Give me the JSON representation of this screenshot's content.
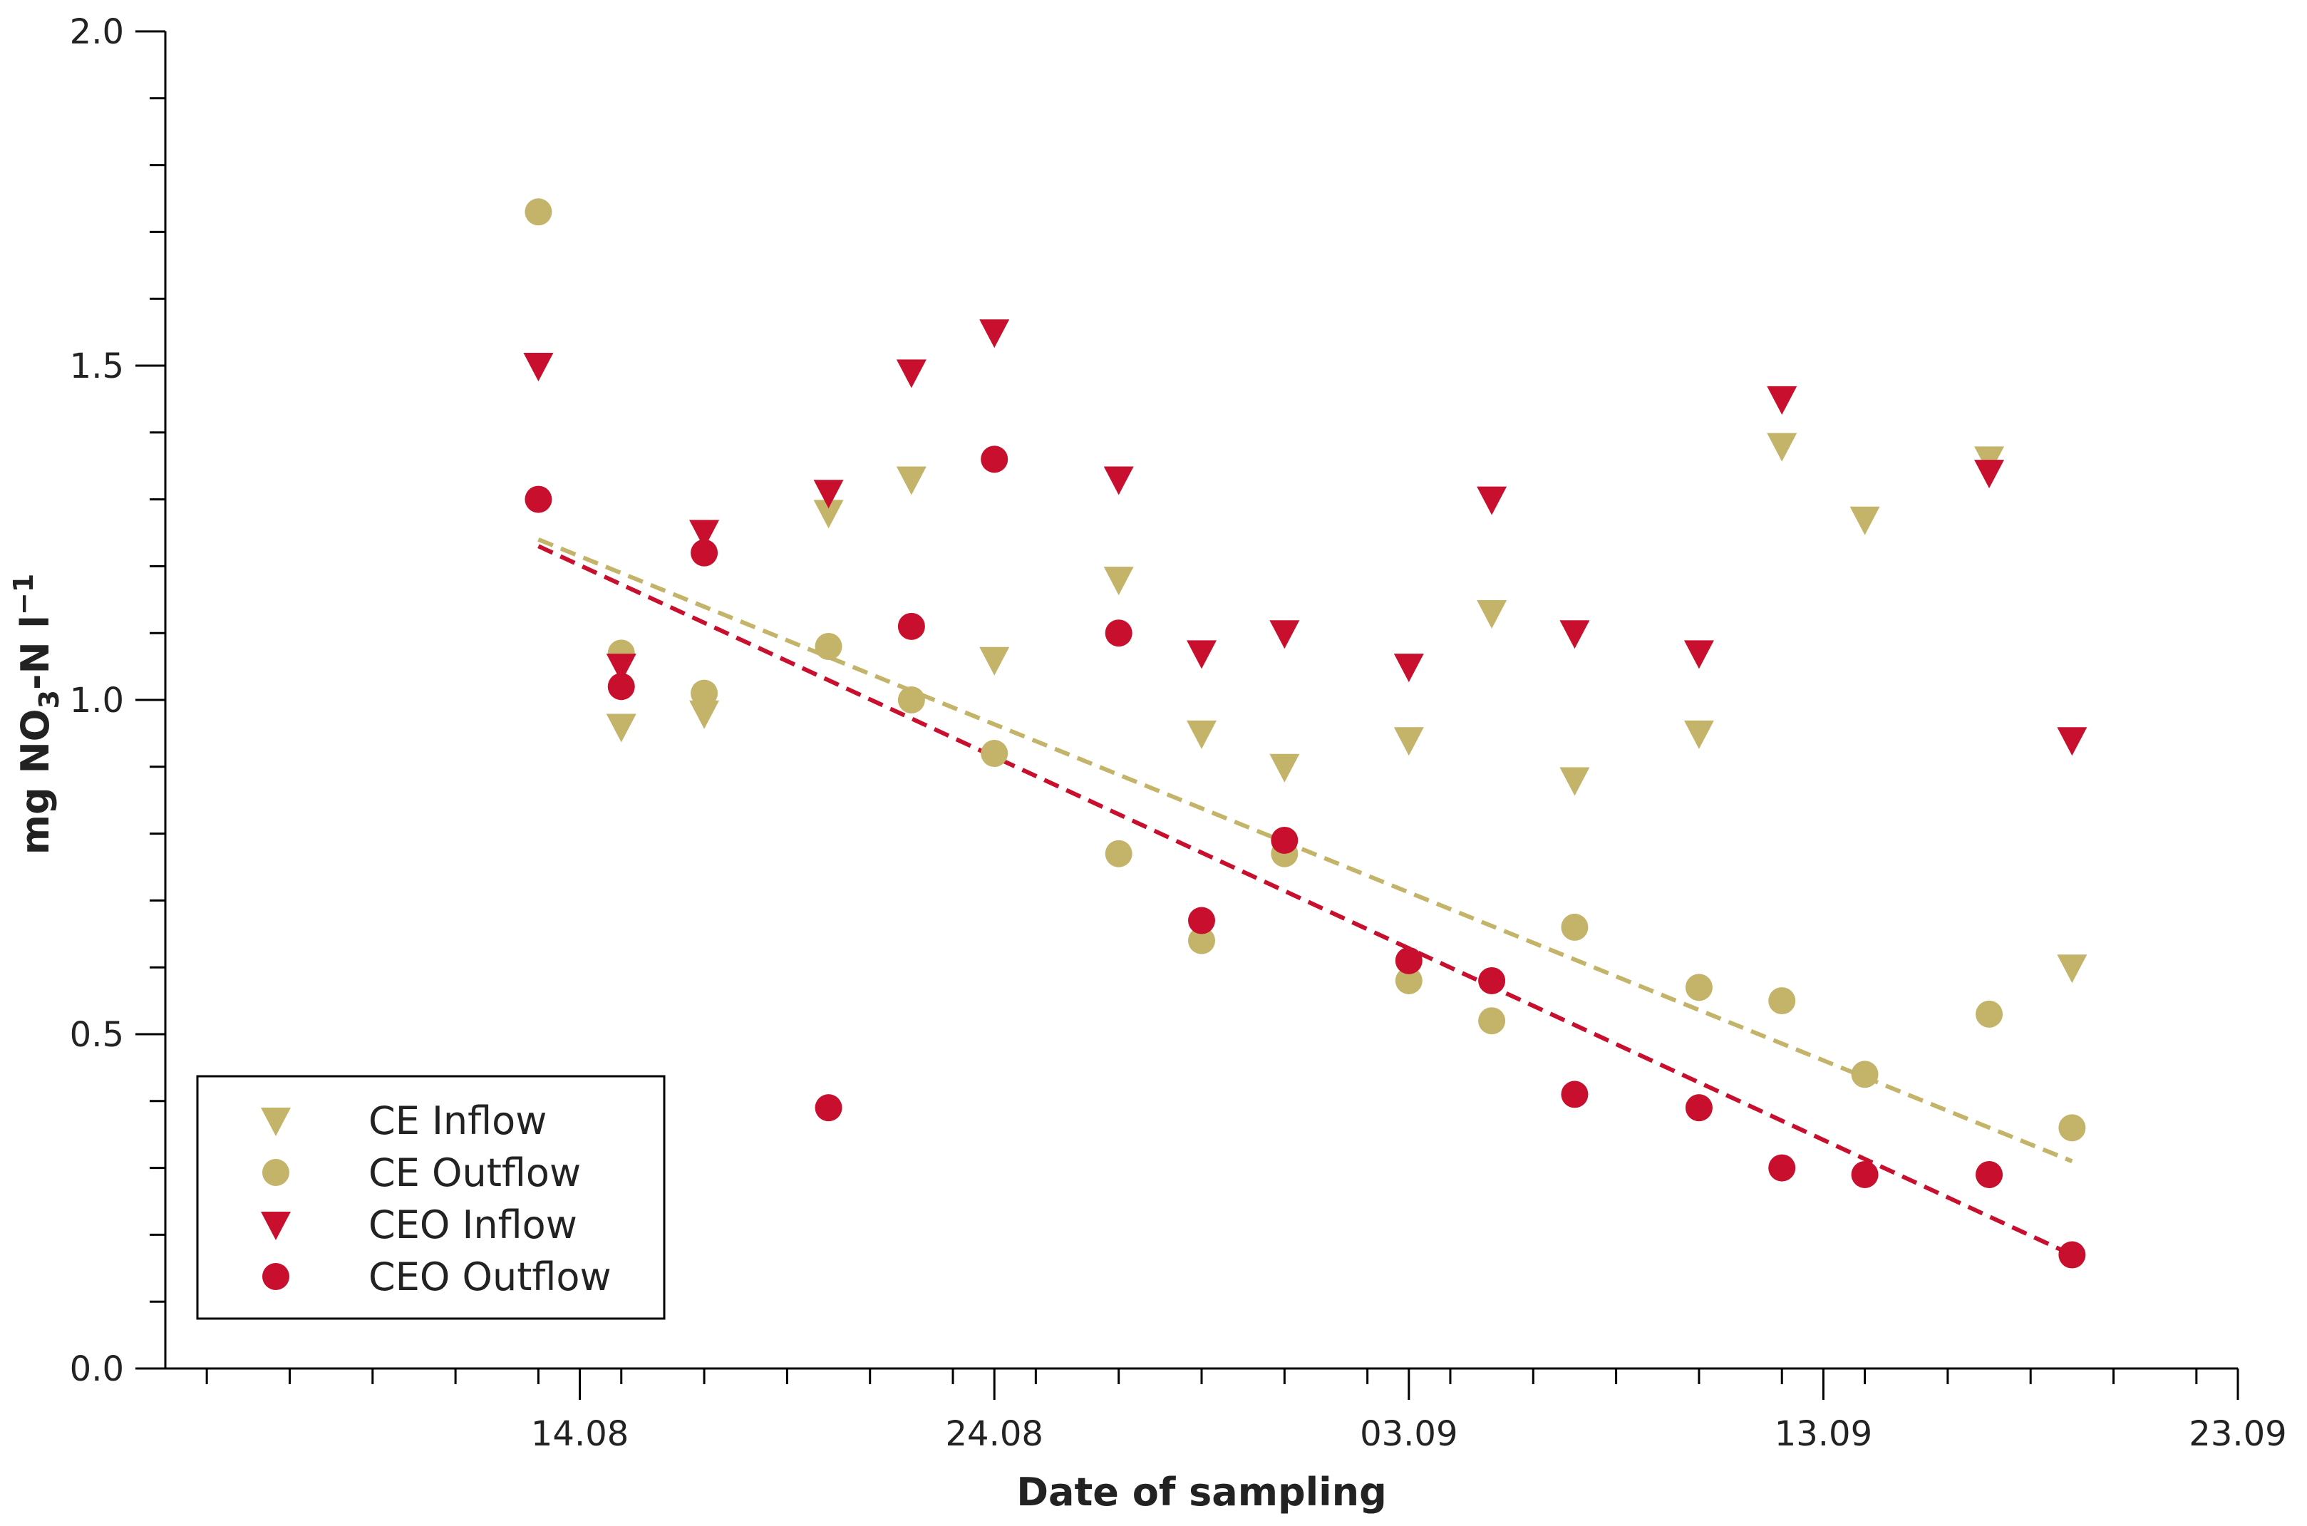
{
  "chart_data": {
    "type": "scatter",
    "xlabel": "Date of sampling",
    "ylabel": {
      "prefix": "mg NO",
      "sub": "3",
      "suffix": "-N l",
      "sup": "−1"
    },
    "xlim": [
      "2023-08-04",
      "2023-09-23"
    ],
    "ylim": [
      0,
      2.0
    ],
    "x_tick_dates": [
      "2023-08-14",
      "2023-08-24",
      "2023-09-03",
      "2023-09-13",
      "2023-09-23"
    ],
    "x_tick_labels": [
      "14.08",
      "24.08",
      "03.09",
      "13.09",
      "23.09"
    ],
    "x_minor_tick_dates": [
      "2023-08-05",
      "2023-08-07",
      "2023-08-09",
      "2023-08-11",
      "2023-08-13",
      "2023-08-15",
      "2023-08-17",
      "2023-08-19",
      "2023-08-21",
      "2023-08-23",
      "2023-08-25",
      "2023-08-27",
      "2023-08-29",
      "2023-08-31",
      "2023-09-02",
      "2023-09-04",
      "2023-09-06",
      "2023-09-08",
      "2023-09-10",
      "2023-09-12",
      "2023-09-14",
      "2023-09-16",
      "2023-09-18",
      "2023-09-20",
      "2023-09-22"
    ],
    "y_ticks": [
      0,
      0.5,
      1.0,
      1.5,
      2.0
    ],
    "y_tick_labels": [
      "0.0",
      "0.5",
      "1.0",
      "1.5",
      "2.0"
    ],
    "y_minor_ticks": [
      0.1,
      0.2,
      0.3,
      0.4,
      0.6,
      0.7,
      0.8,
      0.9,
      1.1,
      1.2,
      1.3,
      1.4,
      1.6,
      1.7,
      1.8,
      1.9
    ],
    "grid": false,
    "legend_position": "bottom-left",
    "series": [
      {
        "name": "CE Inflow",
        "marker": "triangle-down",
        "color": "#c4b46a",
        "points": [
          {
            "x": "2023-08-13",
            "y": 1.5
          },
          {
            "x": "2023-08-15",
            "y": 0.96
          },
          {
            "x": "2023-08-17",
            "y": 0.98
          },
          {
            "x": "2023-08-20",
            "y": 1.28
          },
          {
            "x": "2023-08-22",
            "y": 1.33
          },
          {
            "x": "2023-08-24",
            "y": 1.06
          },
          {
            "x": "2023-08-27",
            "y": 1.18
          },
          {
            "x": "2023-08-29",
            "y": 0.95
          },
          {
            "x": "2023-08-31",
            "y": 0.9
          },
          {
            "x": "2023-09-03",
            "y": 0.94
          },
          {
            "x": "2023-09-05",
            "y": 1.13
          },
          {
            "x": "2023-09-07",
            "y": 0.88
          },
          {
            "x": "2023-09-10",
            "y": 0.95
          },
          {
            "x": "2023-09-12",
            "y": 1.38
          },
          {
            "x": "2023-09-14",
            "y": 1.27
          },
          {
            "x": "2023-09-17",
            "y": 1.36
          },
          {
            "x": "2023-09-19",
            "y": 0.6
          }
        ]
      },
      {
        "name": "CE Outflow",
        "marker": "circle",
        "color": "#c4b46a",
        "points": [
          {
            "x": "2023-08-13",
            "y": 1.73
          },
          {
            "x": "2023-08-15",
            "y": 1.07
          },
          {
            "x": "2023-08-17",
            "y": 1.01
          },
          {
            "x": "2023-08-20",
            "y": 1.08
          },
          {
            "x": "2023-08-22",
            "y": 1.0
          },
          {
            "x": "2023-08-24",
            "y": 0.92
          },
          {
            "x": "2023-08-27",
            "y": 0.77
          },
          {
            "x": "2023-08-29",
            "y": 0.64
          },
          {
            "x": "2023-08-31",
            "y": 0.77
          },
          {
            "x": "2023-09-03",
            "y": 0.58
          },
          {
            "x": "2023-09-05",
            "y": 0.52
          },
          {
            "x": "2023-09-07",
            "y": 0.66
          },
          {
            "x": "2023-09-10",
            "y": 0.57
          },
          {
            "x": "2023-09-12",
            "y": 0.55
          },
          {
            "x": "2023-09-14",
            "y": 0.44
          },
          {
            "x": "2023-09-17",
            "y": 0.53
          },
          {
            "x": "2023-09-19",
            "y": 0.36
          }
        ]
      },
      {
        "name": "CEO Inflow",
        "marker": "triangle-down",
        "color": "#c8102e",
        "points": [
          {
            "x": "2023-08-13",
            "y": 1.5
          },
          {
            "x": "2023-08-15",
            "y": 1.05
          },
          {
            "x": "2023-08-17",
            "y": 1.25
          },
          {
            "x": "2023-08-20",
            "y": 1.31
          },
          {
            "x": "2023-08-22",
            "y": 1.49
          },
          {
            "x": "2023-08-24",
            "y": 1.55
          },
          {
            "x": "2023-08-27",
            "y": 1.33
          },
          {
            "x": "2023-08-29",
            "y": 1.07
          },
          {
            "x": "2023-08-31",
            "y": 1.1
          },
          {
            "x": "2023-09-03",
            "y": 1.05
          },
          {
            "x": "2023-09-05",
            "y": 1.3
          },
          {
            "x": "2023-09-07",
            "y": 1.1
          },
          {
            "x": "2023-09-10",
            "y": 1.07
          },
          {
            "x": "2023-09-12",
            "y": 1.45
          },
          {
            "x": "2023-09-17",
            "y": 1.34
          },
          {
            "x": "2023-09-19",
            "y": 0.94
          }
        ]
      },
      {
        "name": "CEO Outflow",
        "marker": "circle",
        "color": "#c8102e",
        "points": [
          {
            "x": "2023-08-13",
            "y": 1.3
          },
          {
            "x": "2023-08-15",
            "y": 1.02
          },
          {
            "x": "2023-08-17",
            "y": 1.22
          },
          {
            "x": "2023-08-20",
            "y": 0.39
          },
          {
            "x": "2023-08-22",
            "y": 1.11
          },
          {
            "x": "2023-08-24",
            "y": 1.36
          },
          {
            "x": "2023-08-27",
            "y": 1.1
          },
          {
            "x": "2023-08-29",
            "y": 0.67
          },
          {
            "x": "2023-08-31",
            "y": 0.79
          },
          {
            "x": "2023-09-03",
            "y": 0.61
          },
          {
            "x": "2023-09-05",
            "y": 0.58
          },
          {
            "x": "2023-09-07",
            "y": 0.41
          },
          {
            "x": "2023-09-10",
            "y": 0.39
          },
          {
            "x": "2023-09-12",
            "y": 0.3
          },
          {
            "x": "2023-09-14",
            "y": 0.29
          },
          {
            "x": "2023-09-17",
            "y": 0.29
          },
          {
            "x": "2023-09-19",
            "y": 0.17
          }
        ]
      }
    ],
    "trendlines": [
      {
        "series": "CE Outflow",
        "color": "#c4b46a",
        "dash": "dashed",
        "start": {
          "x": "2023-08-13",
          "y": 1.24
        },
        "end": {
          "x": "2023-09-19",
          "y": 0.31
        }
      },
      {
        "series": "CEO Outflow",
        "color": "#c8102e",
        "dash": "dashed",
        "start": {
          "x": "2023-08-13",
          "y": 1.23
        },
        "end": {
          "x": "2023-09-19",
          "y": 0.17
        }
      }
    ]
  }
}
